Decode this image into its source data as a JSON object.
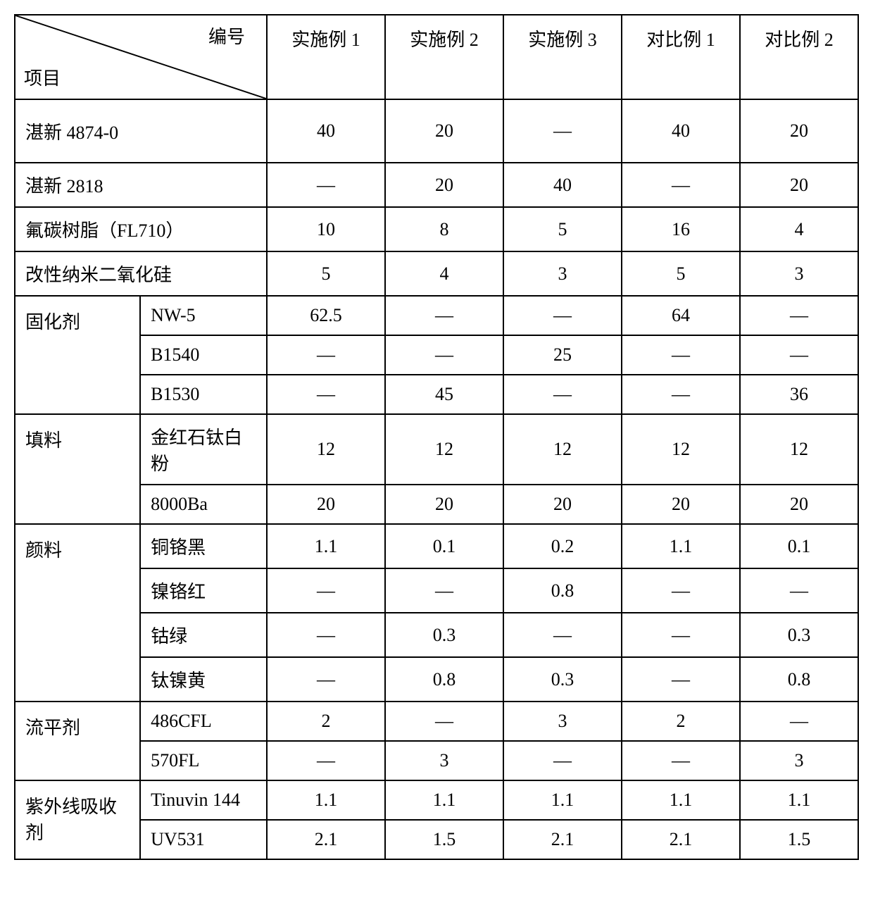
{
  "header": {
    "top_label": "编号",
    "bottom_label": "项目"
  },
  "columns": [
    "实施例 1",
    "实施例 2",
    "实施例 3",
    "对比例 1",
    "对比例 2"
  ],
  "rows": [
    {
      "label": "湛新 4874-0",
      "span": 2,
      "values": [
        "40",
        "20",
        "—",
        "40",
        "20"
      ],
      "tall": true
    },
    {
      "label": "湛新 2818",
      "span": 2,
      "values": [
        "—",
        "20",
        "40",
        "—",
        "20"
      ]
    },
    {
      "label": "氟碳树脂（FL710）",
      "span": 2,
      "values": [
        "10",
        "8",
        "5",
        "16",
        "4"
      ]
    },
    {
      "label": "改性纳米二氧化硅",
      "span": 2,
      "values": [
        "5",
        "4",
        "3",
        "5",
        "3"
      ]
    }
  ],
  "groups": [
    {
      "group": "固化剂",
      "items": [
        {
          "label": "NW-5",
          "values": [
            "62.5",
            "—",
            "—",
            "64",
            "—"
          ]
        },
        {
          "label": "B1540",
          "values": [
            "—",
            "—",
            "25",
            "—",
            "—"
          ]
        },
        {
          "label": "B1530",
          "values": [
            "—",
            "45",
            "—",
            "—",
            "36"
          ]
        }
      ]
    },
    {
      "group": "填料",
      "items": [
        {
          "label": "金红石钛白粉",
          "values": [
            "12",
            "12",
            "12",
            "12",
            "12"
          ]
        },
        {
          "label": "8000Ba",
          "values": [
            "20",
            "20",
            "20",
            "20",
            "20"
          ]
        }
      ]
    },
    {
      "group": "颜料",
      "items": [
        {
          "label": "铜铬黑",
          "values": [
            "1.1",
            "0.1",
            "0.2",
            "1.1",
            "0.1"
          ]
        },
        {
          "label": "镍铬红",
          "values": [
            "—",
            "—",
            "0.8",
            "—",
            "—"
          ]
        },
        {
          "label": "钴绿",
          "values": [
            "—",
            "0.3",
            "—",
            "—",
            "0.3"
          ]
        },
        {
          "label": "钛镍黄",
          "values": [
            "—",
            "0.8",
            "0.3",
            "—",
            "0.8"
          ]
        }
      ]
    },
    {
      "group": "流平剂",
      "items": [
        {
          "label": "486CFL",
          "values": [
            "2",
            "—",
            "3",
            "2",
            "—"
          ]
        },
        {
          "label": "570FL",
          "values": [
            "—",
            "3",
            "—",
            "—",
            "3"
          ]
        }
      ]
    },
    {
      "group": "紫外线吸收剂",
      "items": [
        {
          "label": "Tinuvin 144",
          "values": [
            "1.1",
            "1.1",
            "1.1",
            "1.1",
            "1.1"
          ]
        },
        {
          "label": "UV531",
          "values": [
            "2.1",
            "1.5",
            "2.1",
            "2.1",
            "1.5"
          ]
        }
      ]
    }
  ],
  "style": {
    "border_color": "#000000",
    "bg_color": "#ffffff",
    "text_color": "#000000",
    "font_size": 26,
    "col_count": 5
  }
}
